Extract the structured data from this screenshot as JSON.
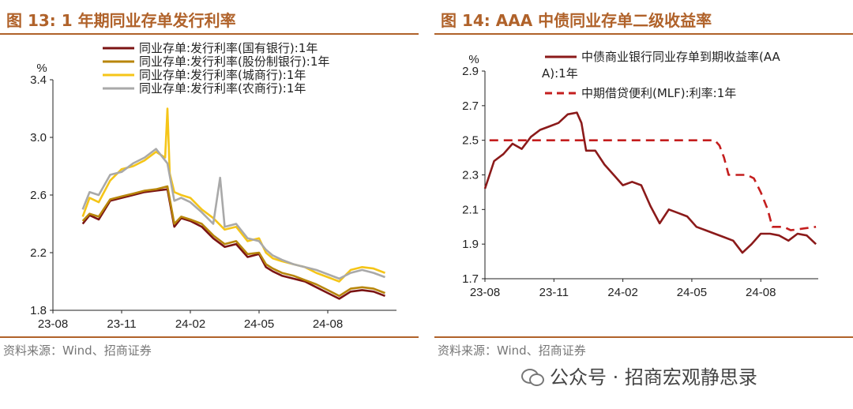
{
  "left": {
    "title": "图 13:  1 年期同业存单发行利率",
    "source": "资料来源：Wind、招商证券",
    "unit": "%"
  },
  "right": {
    "title": "图 14:  AAA 中债同业存单二级收益率",
    "source": "资料来源：Wind、招商证券",
    "unit": "%"
  },
  "footer": {
    "text": "公众号 · 招商宏观静思录",
    "icon": "wechat-icon"
  },
  "chart_data": [
    {
      "type": "line",
      "title": "1 年期同业存单发行利率",
      "ylabel": "%",
      "ylim": [
        1.8,
        3.4
      ],
      "yticks": [
        "1.8",
        "2.2",
        "2.6",
        "3.0",
        "3.4"
      ],
      "xlim": [
        0,
        15
      ],
      "xticks": [
        {
          "label": "23-08",
          "x": 0
        },
        {
          "label": "23-11",
          "x": 3
        },
        {
          "label": "24-02",
          "x": 6
        },
        {
          "label": "24-05",
          "x": 9
        },
        {
          "label": "24-08",
          "x": 12
        }
      ],
      "grid": false,
      "legend": "top",
      "series": [
        {
          "name": "同业存单:发行利率(国有银行):1年",
          "color": "#7b1414",
          "x": [
            1.3,
            1.6,
            2.0,
            2.5,
            3.0,
            3.5,
            4.0,
            4.5,
            5.0,
            5.3,
            5.6,
            6.0,
            6.5,
            7.0,
            7.5,
            8.0,
            8.5,
            9.0,
            9.3,
            9.6,
            10.0,
            10.5,
            11.0,
            11.5,
            12.0,
            12.5,
            13.0,
            13.5,
            14.0,
            14.5
          ],
          "y": [
            2.4,
            2.46,
            2.43,
            2.56,
            2.58,
            2.6,
            2.62,
            2.63,
            2.64,
            2.38,
            2.44,
            2.42,
            2.38,
            2.3,
            2.24,
            2.26,
            2.17,
            2.19,
            2.1,
            2.07,
            2.04,
            2.02,
            2.0,
            1.96,
            1.92,
            1.88,
            1.93,
            1.94,
            1.93,
            1.9
          ]
        },
        {
          "name": "同业存单:发行利率(股份制银行):1年",
          "color": "#b8860b",
          "x": [
            1.3,
            1.6,
            2.0,
            2.5,
            3.0,
            3.5,
            4.0,
            4.5,
            5.0,
            5.3,
            5.6,
            6.0,
            6.5,
            7.0,
            7.5,
            8.0,
            8.5,
            9.0,
            9.3,
            9.6,
            10.0,
            10.5,
            11.0,
            11.5,
            12.0,
            12.5,
            13.0,
            13.5,
            14.0,
            14.5
          ],
          "y": [
            2.42,
            2.47,
            2.45,
            2.57,
            2.59,
            2.61,
            2.63,
            2.64,
            2.66,
            2.4,
            2.45,
            2.43,
            2.4,
            2.32,
            2.26,
            2.28,
            2.19,
            2.2,
            2.12,
            2.09,
            2.06,
            2.04,
            2.01,
            1.98,
            1.94,
            1.9,
            1.95,
            1.96,
            1.95,
            1.92
          ]
        },
        {
          "name": "同业存单:发行利率(城商行):1年",
          "color": "#f5c518",
          "x": [
            1.3,
            1.6,
            2.0,
            2.5,
            3.0,
            3.5,
            4.0,
            4.5,
            4.9,
            5.0,
            5.1,
            5.3,
            5.6,
            6.0,
            6.5,
            7.0,
            7.5,
            8.0,
            8.5,
            9.0,
            9.3,
            9.6,
            10.0,
            10.5,
            11.0,
            11.5,
            12.0,
            12.5,
            13.0,
            13.5,
            14.0,
            14.5
          ],
          "y": [
            2.45,
            2.58,
            2.55,
            2.7,
            2.78,
            2.8,
            2.84,
            2.9,
            2.86,
            3.2,
            2.75,
            2.62,
            2.6,
            2.58,
            2.5,
            2.44,
            2.36,
            2.38,
            2.28,
            2.3,
            2.2,
            2.16,
            2.14,
            2.12,
            2.1,
            2.06,
            2.03,
            2.0,
            2.08,
            2.1,
            2.09,
            2.06
          ]
        },
        {
          "name": "同业存单:发行利率(农商行):1年",
          "color": "#a9a9a9",
          "x": [
            1.3,
            1.6,
            2.0,
            2.5,
            3.0,
            3.5,
            4.0,
            4.5,
            5.0,
            5.3,
            5.6,
            6.0,
            6.5,
            7.0,
            7.3,
            7.5,
            8.0,
            8.5,
            9.0,
            9.3,
            9.6,
            10.0,
            10.5,
            11.0,
            11.5,
            12.0,
            12.5,
            13.0,
            13.5,
            14.0,
            14.5
          ],
          "y": [
            2.5,
            2.62,
            2.6,
            2.74,
            2.76,
            2.82,
            2.86,
            2.92,
            2.82,
            2.56,
            2.58,
            2.55,
            2.48,
            2.4,
            2.72,
            2.38,
            2.4,
            2.3,
            2.28,
            2.22,
            2.18,
            2.15,
            2.12,
            2.1,
            2.08,
            2.05,
            2.02,
            2.06,
            2.08,
            2.06,
            2.03
          ]
        }
      ]
    },
    {
      "type": "line",
      "title": "AAA 中债同业存单二级收益率",
      "ylabel": "%",
      "ylim": [
        1.7,
        2.9
      ],
      "yticks": [
        "1.7",
        "1.9",
        "2.1",
        "2.3",
        "2.5",
        "2.7",
        "2.9"
      ],
      "xlim": [
        0,
        14.5
      ],
      "xticks": [
        {
          "label": "23-08",
          "x": 0
        },
        {
          "label": "23-11",
          "x": 3
        },
        {
          "label": "24-02",
          "x": 6
        },
        {
          "label": "24-05",
          "x": 9
        },
        {
          "label": "24-08",
          "x": 12
        }
      ],
      "grid": false,
      "legend": "top",
      "series": [
        {
          "name": "中债商业银行同业存单到期收益率(AAA):1年",
          "color": "#8b1a1a",
          "dash": false,
          "x": [
            0,
            0.4,
            0.8,
            1.2,
            1.6,
            2.0,
            2.4,
            2.8,
            3.2,
            3.6,
            4.0,
            4.2,
            4.4,
            4.8,
            5.2,
            5.6,
            6.0,
            6.4,
            6.8,
            7.2,
            7.6,
            8.0,
            8.4,
            8.8,
            9.2,
            9.6,
            10.0,
            10.4,
            10.8,
            11.2,
            11.6,
            12.0,
            12.4,
            12.8,
            13.2,
            13.6,
            14.0,
            14.4
          ],
          "y": [
            2.22,
            2.38,
            2.42,
            2.48,
            2.45,
            2.52,
            2.56,
            2.58,
            2.6,
            2.65,
            2.66,
            2.6,
            2.44,
            2.44,
            2.36,
            2.3,
            2.24,
            2.26,
            2.24,
            2.12,
            2.02,
            2.1,
            2.08,
            2.06,
            2.0,
            1.98,
            1.96,
            1.94,
            1.92,
            1.85,
            1.9,
            1.96,
            1.96,
            1.95,
            1.92,
            1.96,
            1.95,
            1.9
          ]
        },
        {
          "name": "中期借贷便利(MLF):利率:1年",
          "color": "#c41e1e",
          "dash": true,
          "x": [
            0.2,
            0.5,
            9.8,
            10.0,
            10.2,
            10.4,
            10.6,
            11.4,
            11.7,
            12.0,
            12.3,
            12.5,
            13.0,
            13.3,
            14.4
          ],
          "y": [
            2.5,
            2.5,
            2.5,
            2.5,
            2.47,
            2.4,
            2.3,
            2.3,
            2.28,
            2.2,
            2.1,
            2.0,
            2.0,
            1.98,
            2.0
          ]
        }
      ]
    }
  ]
}
